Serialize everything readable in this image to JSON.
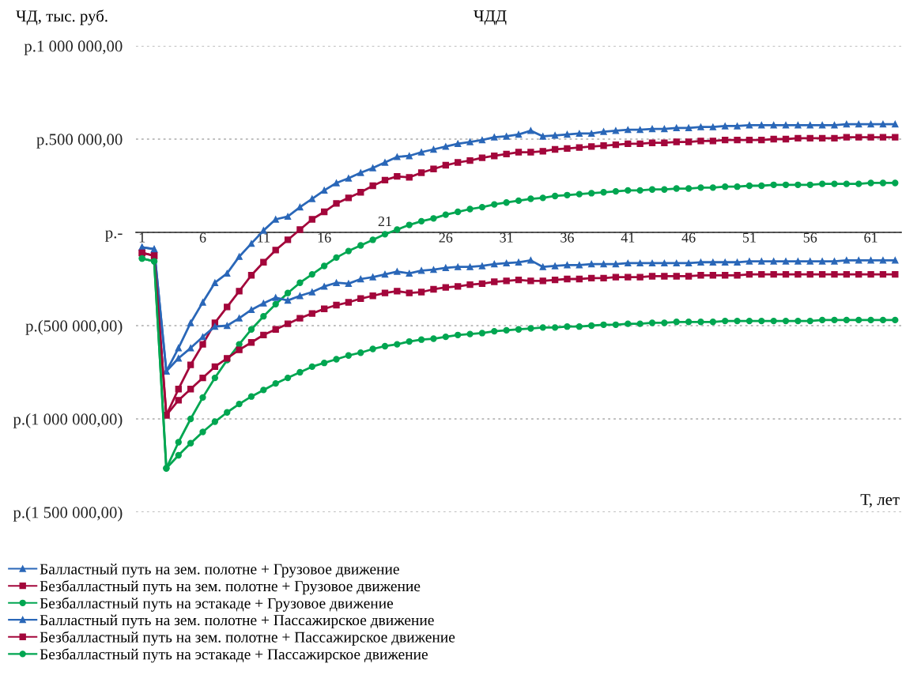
{
  "chart_data": {
    "type": "line",
    "title": "ЧДД",
    "ylabel": "ЧД, тыс. руб.",
    "xlabel": "Т, лет",
    "categories": [
      "1",
      null,
      null,
      null,
      null,
      "6",
      null,
      null,
      null,
      null,
      "11",
      null,
      null,
      null,
      null,
      "16",
      null,
      null,
      null,
      null,
      "21",
      null,
      null,
      null,
      null,
      "26",
      null,
      null,
      null,
      null,
      "31",
      null,
      null,
      null,
      null,
      "36",
      null,
      null,
      null,
      null,
      "41",
      null,
      null,
      null,
      null,
      "46",
      null,
      null,
      null,
      null,
      "51",
      null,
      null,
      null,
      null,
      "56",
      null,
      null,
      null,
      null,
      "61",
      null,
      null
    ],
    "ylim": [
      -1500000,
      1000000
    ],
    "yticks": [
      {
        "value": -1500000,
        "label": "р.(1 500 000,00)"
      },
      {
        "value": -1000000,
        "label": "р.(1 000 000,00)"
      },
      {
        "value": -500000,
        "label": "р.(500 000,00)"
      },
      {
        "value": 0,
        "label": "р.-"
      },
      {
        "value": 500000,
        "label": "р.500 000,00"
      },
      {
        "value": 1000000,
        "label": "р.1 000 000,00"
      }
    ],
    "grid": "y",
    "legend": "bottom",
    "line_style": "solid",
    "series": [
      {
        "name": "Балластный путь на зем. полотне + Грузовое движение",
        "color": "#2a67b8",
        "marker": "triangle",
        "values": [
          -80000,
          -90000,
          -745000,
          -620000,
          -485000,
          -375000,
          -270000,
          -220000,
          -130000,
          -60000,
          10000,
          70000,
          85000,
          135000,
          180000,
          225000,
          265000,
          290000,
          320000,
          345000,
          375000,
          405000,
          410000,
          430000,
          445000,
          460000,
          475000,
          485000,
          495000,
          510000,
          515000,
          525000,
          545000,
          515000,
          520000,
          525000,
          530000,
          530000,
          540000,
          545000,
          550000,
          550000,
          555000,
          555000,
          560000,
          560000,
          565000,
          565000,
          570000,
          570000,
          575000,
          575000,
          575000,
          575000,
          575000,
          575000,
          575000,
          575000,
          580000,
          580000,
          580000,
          580000,
          580000
        ]
      },
      {
        "name": "Безбалластный путь на зем. полотне + Грузовое движение",
        "color": "#a3063b",
        "marker": "square",
        "values": [
          -110000,
          -125000,
          -980000,
          -840000,
          -710000,
          -600000,
          -485000,
          -400000,
          -315000,
          -230000,
          -160000,
          -95000,
          -40000,
          15000,
          70000,
          110000,
          155000,
          185000,
          215000,
          250000,
          280000,
          300000,
          295000,
          320000,
          340000,
          360000,
          375000,
          385000,
          400000,
          410000,
          420000,
          430000,
          430000,
          435000,
          445000,
          450000,
          455000,
          460000,
          465000,
          470000,
          475000,
          475000,
          480000,
          480000,
          485000,
          485000,
          490000,
          490000,
          495000,
          495000,
          495000,
          495000,
          500000,
          500000,
          505000,
          505000,
          505000,
          505000,
          510000,
          510000,
          510000,
          510000,
          510000
        ]
      },
      {
        "name": "Безбалластный путь на эстакаде + Грузовое движение",
        "color": "#00a651",
        "marker": "circle",
        "values": [
          -140000,
          -155000,
          -1265000,
          -1125000,
          -1000000,
          -885000,
          -780000,
          -685000,
          -600000,
          -520000,
          -450000,
          -385000,
          -325000,
          -270000,
          -225000,
          -180000,
          -135000,
          -100000,
          -70000,
          -40000,
          -10000,
          15000,
          40000,
          60000,
          75000,
          95000,
          110000,
          125000,
          135000,
          150000,
          160000,
          170000,
          180000,
          185000,
          195000,
          200000,
          205000,
          210000,
          215000,
          220000,
          225000,
          225000,
          230000,
          230000,
          235000,
          235000,
          240000,
          240000,
          245000,
          245000,
          250000,
          250000,
          255000,
          255000,
          255000,
          255000,
          260000,
          260000,
          260000,
          260000,
          265000,
          265000,
          265000
        ]
      },
      {
        "name": "Балластный путь на зем. полотне + Пассажирское движение",
        "color": "#2a67b8",
        "marker": "triangle",
        "values": [
          -80000,
          -90000,
          -745000,
          -675000,
          -620000,
          -560000,
          -505000,
          -500000,
          -460000,
          -415000,
          -380000,
          -350000,
          -365000,
          -340000,
          -320000,
          -290000,
          -270000,
          -275000,
          -250000,
          -240000,
          -225000,
          -210000,
          -220000,
          -205000,
          -200000,
          -190000,
          -185000,
          -185000,
          -180000,
          -170000,
          -165000,
          -160000,
          -150000,
          -185000,
          -180000,
          -175000,
          -175000,
          -170000,
          -170000,
          -170000,
          -165000,
          -165000,
          -165000,
          -165000,
          -165000,
          -165000,
          -160000,
          -160000,
          -160000,
          -160000,
          -155000,
          -155000,
          -155000,
          -155000,
          -155000,
          -155000,
          -155000,
          -155000,
          -150000,
          -150000,
          -150000,
          -150000,
          -150000
        ]
      },
      {
        "name": "Безбалластный путь на зем. полотне + Пассажирское движение",
        "color": "#a3063b",
        "marker": "square",
        "values": [
          -110000,
          -125000,
          -980000,
          -900000,
          -840000,
          -780000,
          -720000,
          -675000,
          -630000,
          -590000,
          -550000,
          -520000,
          -490000,
          -460000,
          -435000,
          -410000,
          -390000,
          -375000,
          -355000,
          -340000,
          -325000,
          -315000,
          -325000,
          -320000,
          -305000,
          -295000,
          -290000,
          -280000,
          -275000,
          -265000,
          -260000,
          -255000,
          -260000,
          -260000,
          -255000,
          -250000,
          -250000,
          -245000,
          -245000,
          -240000,
          -240000,
          -240000,
          -235000,
          -235000,
          -235000,
          -235000,
          -230000,
          -230000,
          -230000,
          -230000,
          -225000,
          -225000,
          -225000,
          -225000,
          -225000,
          -225000,
          -225000,
          -225000,
          -225000,
          -225000,
          -225000,
          -225000,
          -225000
        ]
      },
      {
        "name": "Безбалластный путь на эстакаде + Пассажирское движение",
        "color": "#00a651",
        "marker": "circle",
        "values": [
          -140000,
          -155000,
          -1265000,
          -1195000,
          -1130000,
          -1070000,
          -1015000,
          -965000,
          -920000,
          -880000,
          -845000,
          -810000,
          -780000,
          -750000,
          -720000,
          -700000,
          -680000,
          -660000,
          -645000,
          -625000,
          -610000,
          -600000,
          -585000,
          -575000,
          -570000,
          -560000,
          -550000,
          -545000,
          -540000,
          -530000,
          -525000,
          -520000,
          -515000,
          -510000,
          -510000,
          -505000,
          -505000,
          -500000,
          -495000,
          -495000,
          -490000,
          -490000,
          -485000,
          -485000,
          -480000,
          -480000,
          -480000,
          -480000,
          -475000,
          -475000,
          -475000,
          -475000,
          -475000,
          -475000,
          -475000,
          -475000,
          -470000,
          -470000,
          -470000,
          -470000,
          -470000,
          -470000,
          -470000
        ]
      }
    ]
  }
}
